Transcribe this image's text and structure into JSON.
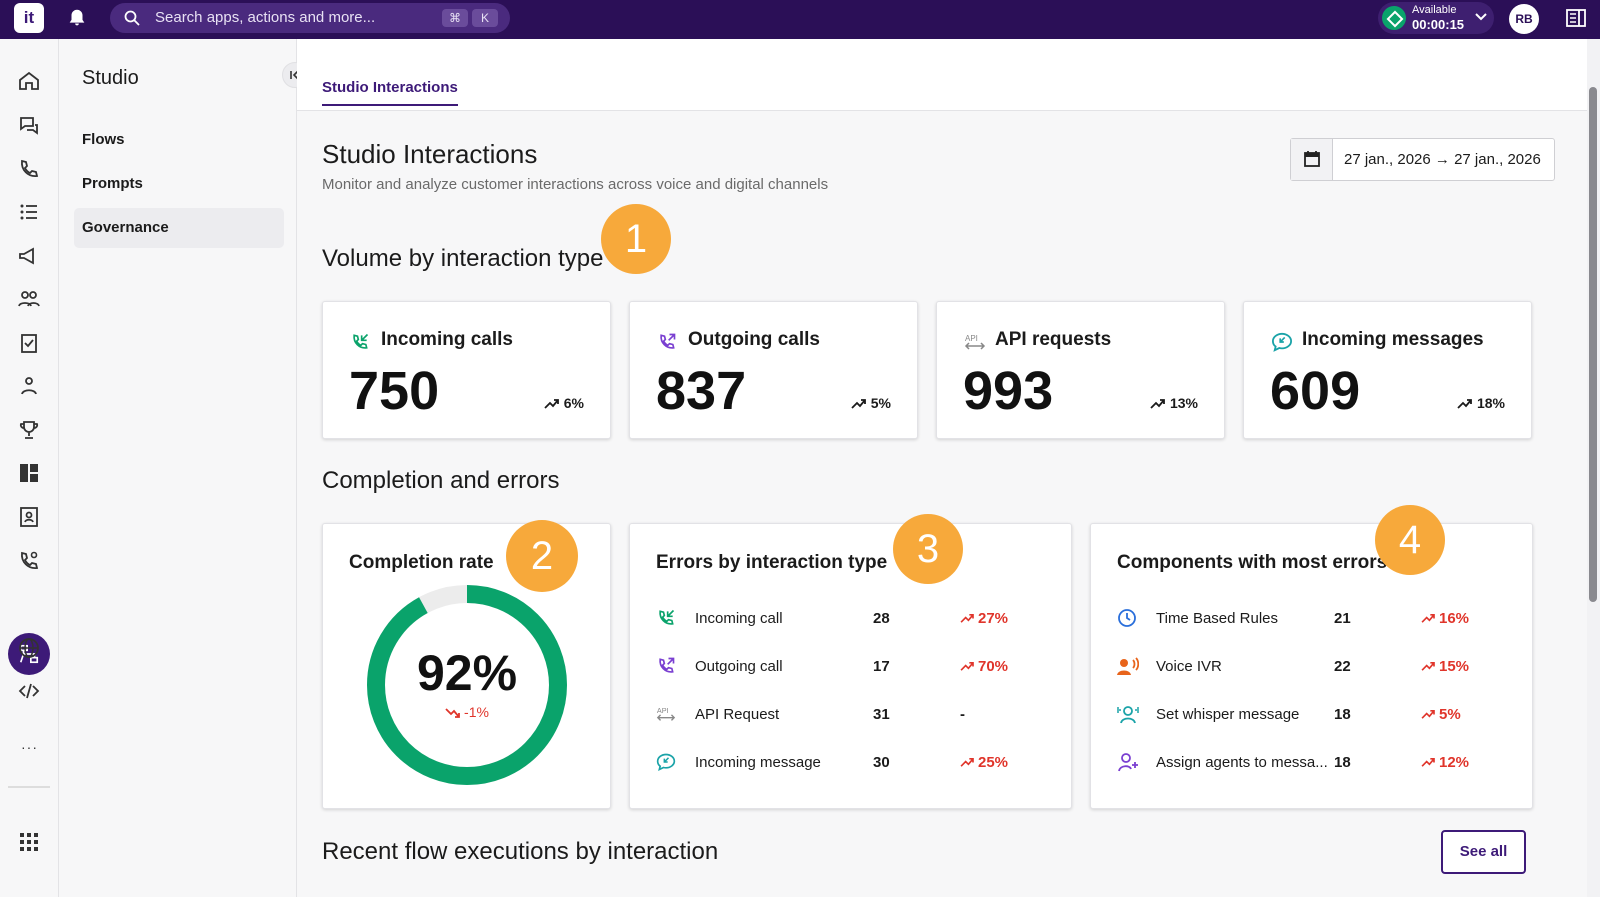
{
  "topbar": {
    "logo_text": "it",
    "search_placeholder": "Search apps, actions and more...",
    "shortcut_key1": "⌘",
    "shortcut_key2": "K",
    "status_label": "Available",
    "status_timer": "00:00:15",
    "avatar_initials": "RB"
  },
  "rail": {
    "icons": [
      "home-icon",
      "conversation-icon",
      "phone-incoming-icon",
      "list-icon",
      "megaphone-icon",
      "people-icon",
      "clipboard-check-icon",
      "team-icon",
      "trophy-icon",
      "dashboard-icon",
      "contact-book-icon",
      "phone-settings-icon",
      "flow-icon",
      "globe-icon",
      "code-icon"
    ],
    "more_label": "···"
  },
  "subnav": {
    "title": "Studio",
    "items": [
      {
        "label": "Flows",
        "selected": false
      },
      {
        "label": "Prompts",
        "selected": false
      },
      {
        "label": "Governance",
        "selected": true
      }
    ]
  },
  "main": {
    "tab_label": "Studio Interactions",
    "page_title": "Studio Interactions",
    "page_subtitle": "Monitor and analyze customer interactions across voice and digital channels",
    "date_range": "27 jan., 2026 → 27 jan., 2026",
    "section_volume": "Volume by interaction type",
    "section_completion": "Completion and errors",
    "section_recent": "Recent flow executions by interaction",
    "see_all_label": "See all",
    "badges": [
      "1",
      "2",
      "3",
      "4"
    ],
    "kpis": [
      {
        "label": "Incoming calls",
        "value": "750",
        "trend": "6%",
        "icon": "phone-incoming-icon",
        "color": "#0aa36b"
      },
      {
        "label": "Outgoing calls",
        "value": "837",
        "trend": "5%",
        "icon": "phone-outgoing-icon",
        "color": "#7a3fd1"
      },
      {
        "label": "API requests",
        "value": "993",
        "trend": "13%",
        "icon": "api-icon",
        "color": "#888888"
      },
      {
        "label": "Incoming messages",
        "value": "609",
        "trend": "18%",
        "icon": "message-icon",
        "color": "#1aa3a8"
      }
    ],
    "completion": {
      "title": "Completion rate",
      "value": "92%",
      "rate": 0.92,
      "trend": "-1%",
      "ring_color": "#0aa36b"
    },
    "errors": {
      "title": "Errors by interaction type",
      "rows": [
        {
          "name": "Incoming call",
          "value": "28",
          "trend": "27%"
        },
        {
          "name": "Outgoing call",
          "value": "17",
          "trend": "70%"
        },
        {
          "name": "API Request",
          "value": "31",
          "trend": "-"
        },
        {
          "name": "Incoming message",
          "value": "30",
          "trend": "25%"
        }
      ]
    },
    "components": {
      "title": "Components with most errors",
      "rows": [
        {
          "name": "Time Based Rules",
          "value": "21",
          "trend": "16%"
        },
        {
          "name": "Voice IVR",
          "value": "22",
          "trend": "15%"
        },
        {
          "name": "Set whisper message",
          "value": "18",
          "trend": "5%"
        },
        {
          "name": "Assign agents to messa...",
          "value": "18",
          "trend": "12%"
        }
      ]
    }
  }
}
